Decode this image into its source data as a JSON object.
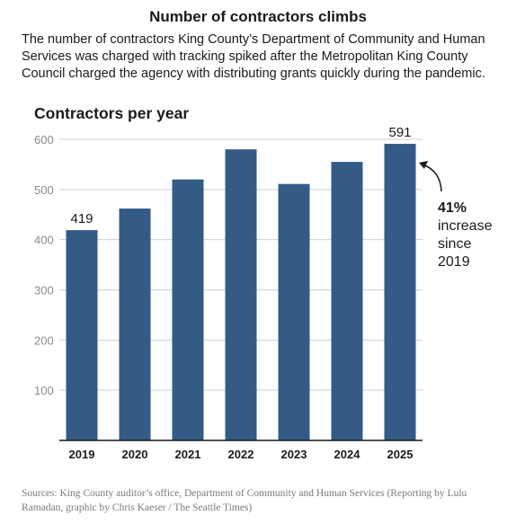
{
  "header": {
    "title": "Number of contractors climbs",
    "subtitle": "The number of contractors King County’s Department of Community and Human Services was charged with tracking spiked after the Metropolitan King County Council charged the agency with distributing grants quickly during the pandemic."
  },
  "chart_data": {
    "type": "bar",
    "title": "Contractors per year",
    "xlabel": "",
    "ylabel": "",
    "categories": [
      "2019",
      "2020",
      "2021",
      "2022",
      "2023",
      "2024",
      "2025"
    ],
    "values": [
      419,
      462,
      520,
      580,
      511,
      555,
      591
    ],
    "data_labels": [
      {
        "category": "2019",
        "text": "419"
      },
      {
        "category": "2025",
        "text": "591"
      }
    ],
    "ylim": [
      0,
      600
    ],
    "yticks": [
      100,
      200,
      300,
      400,
      500,
      600
    ],
    "grid": true,
    "bar_color": "#335b86",
    "annotation": {
      "highlight": "41%",
      "text_lines": [
        "increase",
        "since",
        "2019"
      ],
      "points_to": "2025"
    }
  },
  "footer": {
    "source": "Sources: King County auditor’s office, Department of Community and Human Services (Reporting by Lulu Ramadan, graphic by Chris Kaeser / The Seattle Times)"
  }
}
